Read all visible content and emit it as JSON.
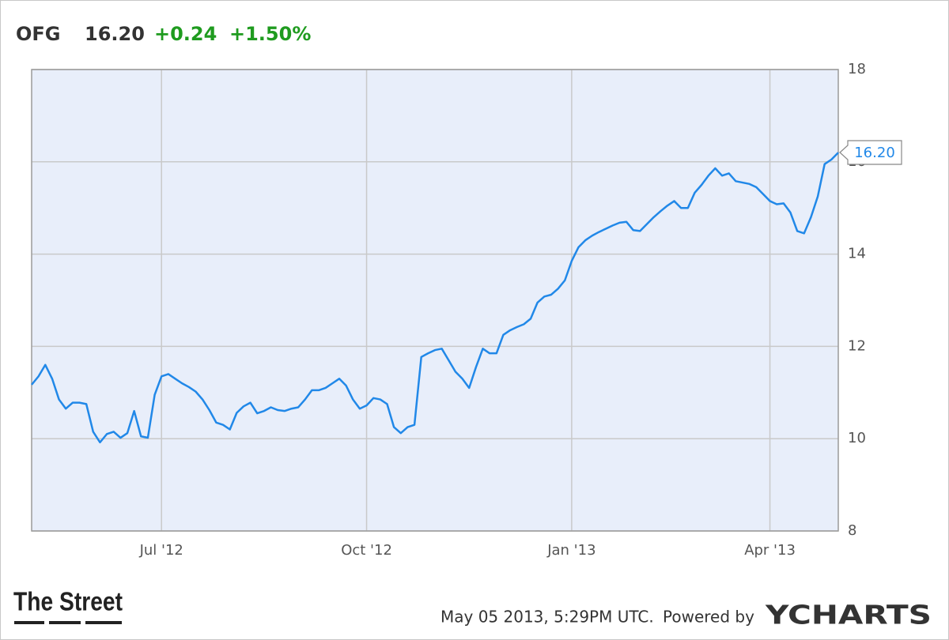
{
  "chart_data": {
    "type": "line",
    "title": {
      "ticker": "OFG",
      "price": "16.20",
      "change": "+0.24",
      "change_pct": "+1.50%"
    },
    "categories": [
      null,
      null,
      null,
      null,
      null,
      null,
      null,
      null,
      null,
      null,
      null,
      null,
      null,
      null,
      null,
      null,
      null,
      null,
      null,
      "Jul '12",
      null,
      null,
      null,
      null,
      null,
      null,
      null,
      null,
      null,
      null,
      null,
      null,
      null,
      null,
      null,
      null,
      null,
      null,
      null,
      null,
      null,
      null,
      null,
      null,
      null,
      null,
      null,
      null,
      null,
      "Oct '12",
      null,
      null,
      null,
      null,
      null,
      null,
      null,
      null,
      null,
      null,
      null,
      null,
      null,
      null,
      null,
      null,
      null,
      null,
      null,
      null,
      null,
      null,
      null,
      null,
      null,
      null,
      null,
      null,
      null,
      "Jan '13",
      null,
      null,
      null,
      null,
      null,
      null,
      null,
      null,
      null,
      null,
      null,
      null,
      null,
      null,
      null,
      null,
      null,
      null,
      null,
      null,
      null,
      null,
      null,
      null,
      null,
      null,
      null,
      null,
      "Apr '13",
      null,
      null,
      null,
      null,
      null,
      null,
      null,
      null,
      null,
      null
    ],
    "values": [
      11.17,
      11.35,
      11.6,
      11.3,
      10.85,
      10.65,
      10.78,
      10.78,
      10.75,
      10.15,
      9.92,
      10.1,
      10.15,
      10.02,
      10.12,
      10.6,
      10.05,
      10.02,
      10.95,
      11.35,
      11.4,
      11.3,
      11.2,
      11.12,
      11.02,
      10.85,
      10.62,
      10.35,
      10.3,
      10.2,
      10.56,
      10.7,
      10.78,
      10.55,
      10.6,
      10.68,
      10.62,
      10.6,
      10.65,
      10.68,
      10.85,
      11.05,
      11.05,
      11.1,
      11.2,
      11.3,
      11.15,
      10.85,
      10.65,
      10.72,
      10.88,
      10.85,
      10.75,
      10.25,
      10.12,
      10.25,
      10.3,
      11.77,
      11.85,
      11.92,
      11.95,
      11.7,
      11.45,
      11.3,
      11.1,
      11.55,
      11.95,
      11.85,
      11.85,
      12.25,
      12.35,
      12.42,
      12.48,
      12.6,
      12.95,
      13.08,
      13.12,
      13.25,
      13.43,
      13.85,
      14.15,
      14.3,
      14.4,
      14.48,
      14.55,
      14.62,
      14.68,
      14.7,
      14.52,
      14.5,
      14.65,
      14.8,
      14.93,
      15.05,
      15.15,
      15.0,
      15.0,
      15.33,
      15.5,
      15.7,
      15.86,
      15.7,
      15.75,
      15.58,
      15.55,
      15.52,
      15.45,
      15.3,
      15.15,
      15.08,
      15.1,
      14.9,
      14.5,
      14.45,
      14.8,
      15.25,
      15.95,
      16.05,
      16.2
    ],
    "color": "#2188e8",
    "ylim": [
      8,
      18
    ],
    "yticks": [
      8,
      10,
      12,
      14,
      16,
      18
    ],
    "grid": true,
    "footer": {
      "brand": "The Street",
      "timestamp": "May 05 2013, 5:29PM UTC.",
      "powered": "Powered by",
      "provider": "YCHARTS"
    }
  }
}
